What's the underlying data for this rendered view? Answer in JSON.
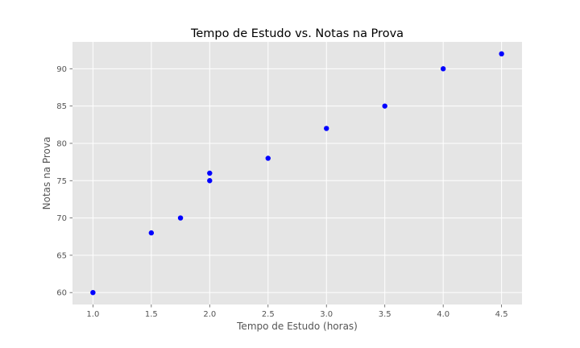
{
  "chart_data": {
    "type": "scatter",
    "title": "Tempo de Estudo vs. Notas na Prova",
    "xlabel": "Tempo de Estudo (horas)",
    "ylabel": "Notas na Prova",
    "xlim": [
      0.825,
      4.675
    ],
    "ylim": [
      58.4,
      93.6
    ],
    "xticks": [
      1.0,
      1.5,
      2.0,
      2.5,
      3.0,
      3.5,
      4.0,
      4.5
    ],
    "xtick_labels": [
      "1.0",
      "1.5",
      "2.0",
      "2.5",
      "3.0",
      "3.5",
      "4.0",
      "4.5"
    ],
    "yticks": [
      60,
      65,
      70,
      75,
      80,
      85,
      90
    ],
    "ytick_labels": [
      "60",
      "65",
      "70",
      "75",
      "80",
      "85",
      "90"
    ],
    "grid": true,
    "style": "ggplot",
    "colors": {
      "background": "#e5e5e5",
      "grid": "#ffffff",
      "marker": "#0000ff"
    },
    "points": [
      {
        "x": 1.0,
        "y": 60
      },
      {
        "x": 1.5,
        "y": 68
      },
      {
        "x": 1.75,
        "y": 70
      },
      {
        "x": 2.0,
        "y": 75
      },
      {
        "x": 2.0,
        "y": 76
      },
      {
        "x": 2.5,
        "y": 78
      },
      {
        "x": 3.0,
        "y": 82
      },
      {
        "x": 3.5,
        "y": 85
      },
      {
        "x": 4.0,
        "y": 90
      },
      {
        "x": 4.5,
        "y": 92
      }
    ]
  }
}
